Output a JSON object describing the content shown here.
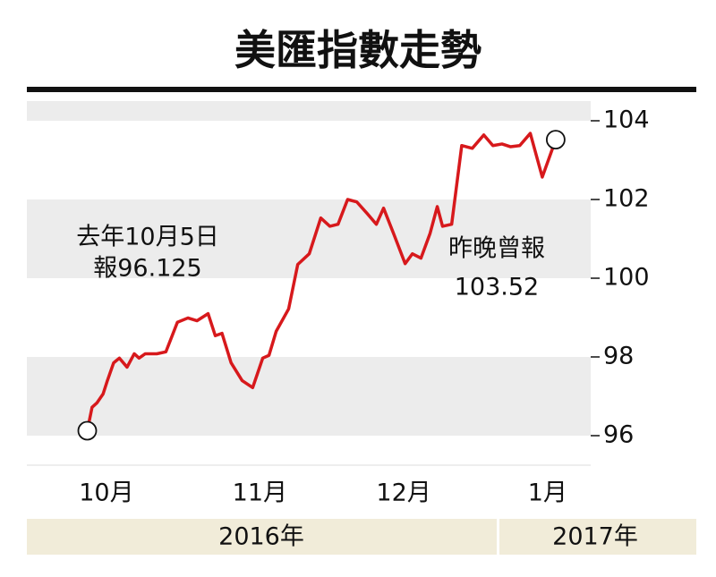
{
  "chart_data": {
    "type": "line",
    "title": "美匯指數走勢",
    "x": [
      4,
      5,
      6,
      7.3,
      8.2,
      9.5,
      10.7,
      12.3,
      13.8,
      14.8,
      16.1,
      18.5,
      20.4,
      22.8,
      25,
      26.9,
      29.2,
      30.7,
      32.1,
      34,
      36.3,
      38.5,
      40.6,
      41.9,
      43.4,
      46,
      47.9,
      50.3,
      52.7,
      54.6,
      56.3,
      58.3,
      60.2,
      62.4,
      64.3,
      65.8,
      68,
      70.3,
      71.8,
      73.6,
      75.5,
      77,
      78.1,
      80,
      82.1,
      84.3,
      86.7,
      88.6,
      90.5,
      92.3,
      94.2,
      96.4,
      98.9,
      101.7
    ],
    "series": [
      {
        "color": "#d7191c",
        "values": [
          96.125,
          96.72,
          96.83,
          97.06,
          97.4,
          97.85,
          97.97,
          97.74,
          98.08,
          97.97,
          98.08,
          98.08,
          98.13,
          98.88,
          98.99,
          98.92,
          99.1,
          98.54,
          98.6,
          97.85,
          97.4,
          97.22,
          97.97,
          98.04,
          98.65,
          99.22,
          100.35,
          100.62,
          101.53,
          101.32,
          101.37,
          102,
          101.94,
          101.64,
          101.37,
          101.78,
          101.1,
          100.37,
          100.62,
          100.51,
          101.14,
          101.82,
          101.32,
          101.37,
          103.37,
          103.3,
          103.64,
          103.37,
          103.41,
          103.34,
          103.37,
          103.68,
          102.57,
          103.52
        ]
      }
    ],
    "xlim": [
      -8.6,
      109
    ],
    "xticks": [
      {
        "value": 8,
        "label": "10月"
      },
      {
        "value": 40,
        "label": "11月"
      },
      {
        "value": 70,
        "label": "12月"
      },
      {
        "value": 100,
        "label": "1月"
      }
    ],
    "ylim": [
      95.25,
      104.5
    ],
    "yticks": [
      96,
      98,
      100,
      102,
      104
    ],
    "year_labels": [
      "2016年",
      "2017年"
    ],
    "annotations": [
      [
        "去年10月5日",
        "報96.125"
      ],
      [
        "昨晚曾報",
        "103.52"
      ]
    ]
  }
}
